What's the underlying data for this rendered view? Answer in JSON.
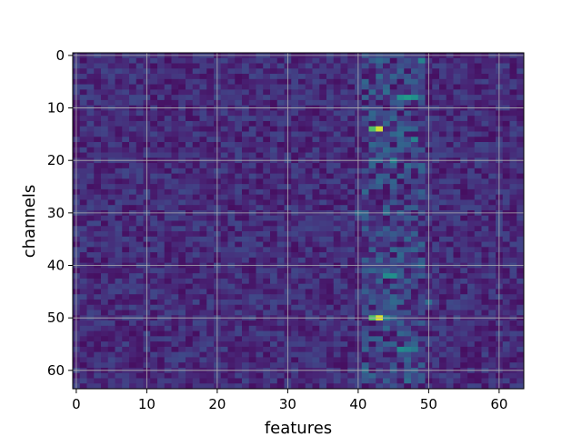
{
  "chart_data": {
    "type": "heatmap",
    "title": "",
    "xlabel": "features",
    "ylabel": "channels",
    "x_ticks": [
      "0",
      "10",
      "20",
      "30",
      "40",
      "50",
      "60"
    ],
    "y_ticks": [
      "0",
      "10",
      "20",
      "30",
      "40",
      "50",
      "60"
    ],
    "xlim": [
      -0.5,
      63.5
    ],
    "ylim": [
      63.5,
      -0.5
    ],
    "grid": true,
    "colormap": "viridis",
    "rows": 64,
    "cols": 64,
    "background_level": 0.16,
    "bright_column_range": [
      41,
      49
    ],
    "hot_cells": [
      {
        "row": 1,
        "col": 49,
        "value": 0.55
      },
      {
        "row": 8,
        "col": 46,
        "value": 0.62
      },
      {
        "row": 8,
        "col": 47,
        "value": 0.68
      },
      {
        "row": 8,
        "col": 48,
        "value": 0.62
      },
      {
        "row": 7,
        "col": 44,
        "value": 0.45
      },
      {
        "row": 14,
        "col": 42,
        "value": 0.82
      },
      {
        "row": 14,
        "col": 43,
        "value": 0.96
      },
      {
        "row": 15,
        "col": 46,
        "value": 0.45
      },
      {
        "row": 16,
        "col": 48,
        "value": 0.55
      },
      {
        "row": 20,
        "col": 45,
        "value": 0.55
      },
      {
        "row": 30,
        "col": 40,
        "value": 0.42
      },
      {
        "row": 30,
        "col": 44,
        "value": 0.45
      },
      {
        "row": 42,
        "col": 44,
        "value": 0.6
      },
      {
        "row": 42,
        "col": 45,
        "value": 0.62
      },
      {
        "row": 47,
        "col": 50,
        "value": 0.45
      },
      {
        "row": 50,
        "col": 42,
        "value": 0.82
      },
      {
        "row": 50,
        "col": 43,
        "value": 0.97
      },
      {
        "row": 50,
        "col": 44,
        "value": 0.55
      },
      {
        "row": 56,
        "col": 46,
        "value": 0.6
      },
      {
        "row": 56,
        "col": 47,
        "value": 0.55
      },
      {
        "row": 56,
        "col": 48,
        "value": 0.5
      },
      {
        "row": 60,
        "col": 41,
        "value": 0.45
      },
      {
        "row": 62,
        "col": 47,
        "value": 0.45
      }
    ]
  }
}
